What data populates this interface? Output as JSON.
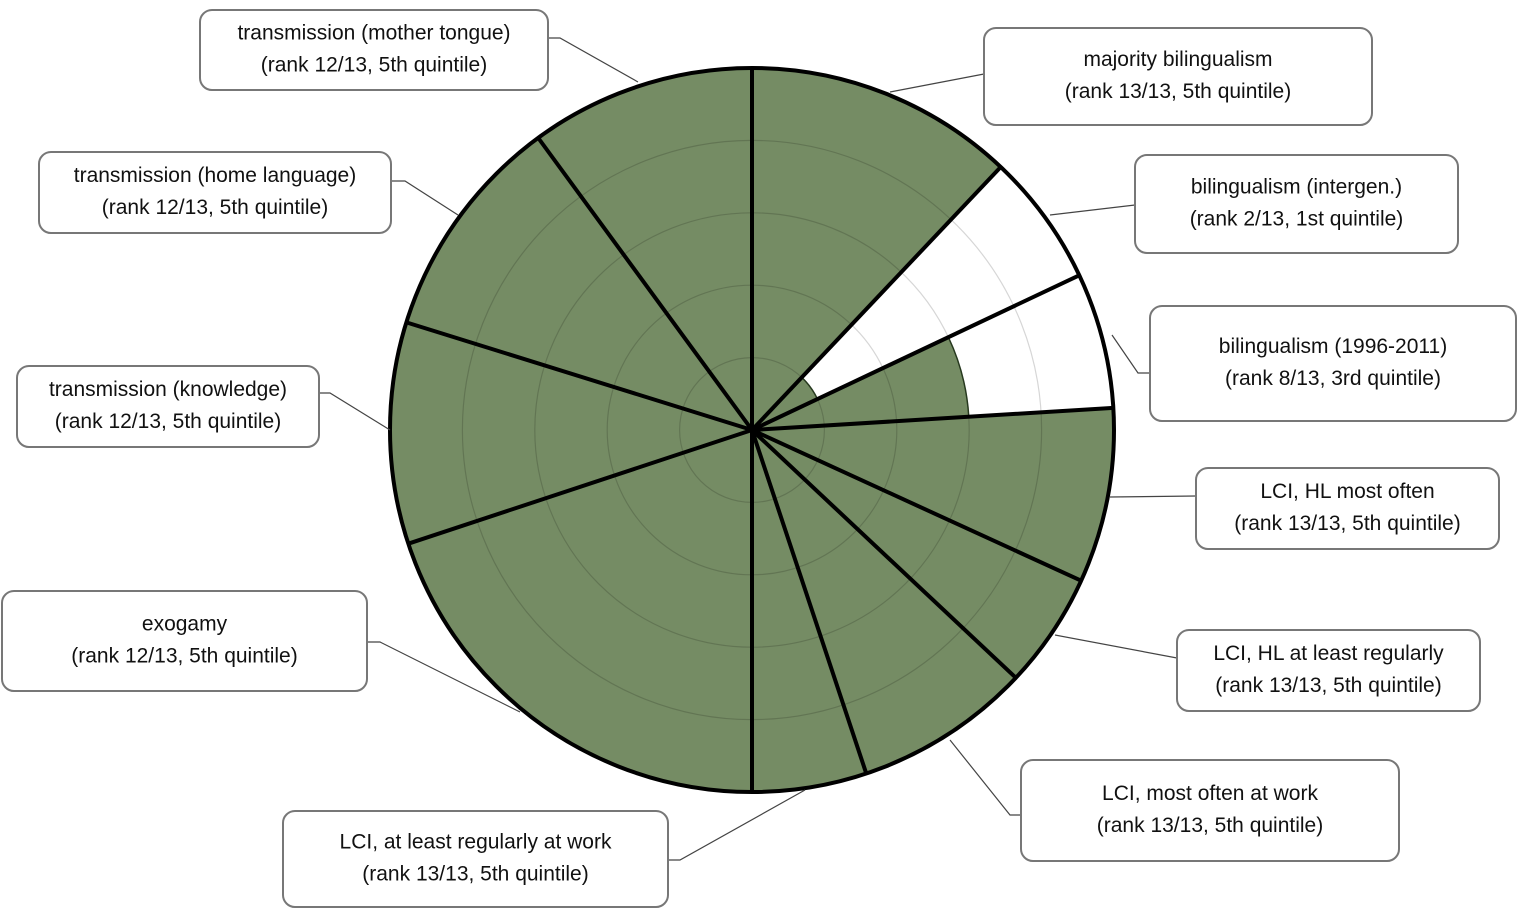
{
  "chart_data": {
    "type": "polar_area",
    "categories": [
      [
        "majority bilingualism",
        "(rank 13/13, 5th quintile)"
      ],
      [
        "bilingualism (intergen.)",
        "(rank 2/13, 1st quintile)"
      ],
      [
        "bilingualism (1996-2011)",
        "(rank 8/13, 3rd quintile)"
      ],
      [
        "LCI, HL most often",
        "(rank 13/13, 5th quintile)"
      ],
      [
        "LCI, HL at least regularly",
        "(rank 13/13, 5th quintile)"
      ],
      [
        "LCI, most often at work",
        "(rank 13/13, 5th quintile)"
      ],
      [
        "LCI, at least regularly at work",
        "(rank 13/13, 5th quintile)"
      ],
      [
        "exogamy",
        "(rank 12/13, 5th quintile)"
      ],
      [
        "transmission (knowledge)",
        "(rank 12/13, 5th quintile)"
      ],
      [
        "transmission (home language)",
        "(rank 12/13, 5th quintile)"
      ],
      [
        "transmission (mother tongue)",
        "(rank 12/13, 5th quintile)"
      ]
    ],
    "values": [
      5,
      1,
      3,
      5,
      5,
      5,
      5,
      5,
      5,
      5,
      5
    ],
    "widths": [
      43.4,
      21.3,
      21.8,
      28.1,
      18.6,
      28.4,
      18.4,
      71.7,
      35.6,
      36.5,
      36.2
    ],
    "rlim": [
      0,
      5
    ],
    "rticks": [
      1,
      2,
      3,
      4,
      5
    ],
    "color": "#758c64"
  }
}
